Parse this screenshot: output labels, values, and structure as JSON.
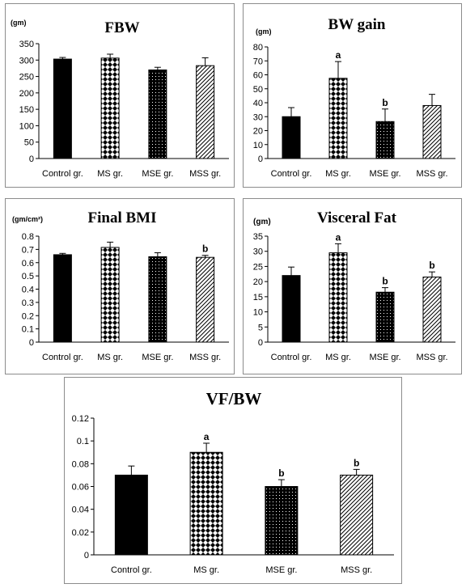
{
  "chart_data": [
    {
      "type": "bar",
      "title": "FBW",
      "unit_label": "(gm)",
      "categories": [
        "Control gr.",
        "MS gr.",
        "MSE gr.",
        "MSS gr."
      ],
      "values": [
        303,
        306,
        270,
        283
      ],
      "errors": [
        5,
        12,
        8,
        24
      ],
      "significance": [
        "",
        "",
        "",
        ""
      ],
      "ylim": [
        0,
        350
      ],
      "yticks": [
        0,
        50,
        100,
        150,
        200,
        250,
        300,
        350
      ],
      "patterns": [
        "solid",
        "diamond",
        "dots",
        "diagonal"
      ]
    },
    {
      "type": "bar",
      "title": "BW gain",
      "unit_label": "(gm)",
      "categories": [
        "Control gr.",
        "MS gr.",
        "MSE gr.",
        "MSS gr."
      ],
      "values": [
        30,
        57.5,
        26.5,
        38
      ],
      "errors": [
        6.5,
        12,
        9,
        8
      ],
      "significance": [
        "",
        "a",
        "b",
        ""
      ],
      "ylim": [
        0,
        80
      ],
      "yticks": [
        0,
        10,
        20,
        30,
        40,
        50,
        60,
        70,
        80
      ],
      "patterns": [
        "solid",
        "diamond",
        "dots",
        "diagonal"
      ]
    },
    {
      "type": "bar",
      "title": "Final BMI",
      "unit_label": "(gm/cm²)",
      "categories": [
        "Control gr.",
        "MS gr.",
        "MSE gr.",
        "MSS gr."
      ],
      "values": [
        0.66,
        0.715,
        0.645,
        0.64
      ],
      "errors": [
        0.01,
        0.04,
        0.03,
        0.015
      ],
      "significance": [
        "",
        "",
        "",
        "b"
      ],
      "ylim": [
        0,
        0.8
      ],
      "yticks": [
        0,
        0.1,
        0.2,
        0.3,
        0.4,
        0.5,
        0.6,
        0.7,
        0.8
      ],
      "patterns": [
        "solid",
        "diamond",
        "dots",
        "diagonal"
      ]
    },
    {
      "type": "bar",
      "title": "Visceral Fat",
      "unit_label": "(gm)",
      "categories": [
        "Control gr.",
        "MS gr.",
        "MSE gr.",
        "MSS gr."
      ],
      "values": [
        22,
        29.5,
        16.5,
        21.5
      ],
      "errors": [
        2.8,
        3,
        1.5,
        1.7
      ],
      "significance": [
        "",
        "a",
        "b",
        "b"
      ],
      "ylim": [
        0,
        35
      ],
      "yticks": [
        0,
        5,
        10,
        15,
        20,
        25,
        30,
        35
      ],
      "patterns": [
        "solid",
        "diamond",
        "dots",
        "diagonal"
      ]
    },
    {
      "type": "bar",
      "title": "VF/BW",
      "unit_label": "",
      "categories": [
        "Control gr.",
        "MS gr.",
        "MSE gr.",
        "MSS gr."
      ],
      "values": [
        0.07,
        0.09,
        0.06,
        0.07
      ],
      "errors": [
        0.008,
        0.008,
        0.006,
        0.005
      ],
      "significance": [
        "",
        "a",
        "b",
        "b"
      ],
      "ylim": [
        0,
        0.12
      ],
      "yticks": [
        0,
        0.02,
        0.04,
        0.06,
        0.08,
        0.1,
        0.12
      ],
      "patterns": [
        "solid",
        "diamond",
        "dots",
        "diagonal"
      ]
    }
  ]
}
